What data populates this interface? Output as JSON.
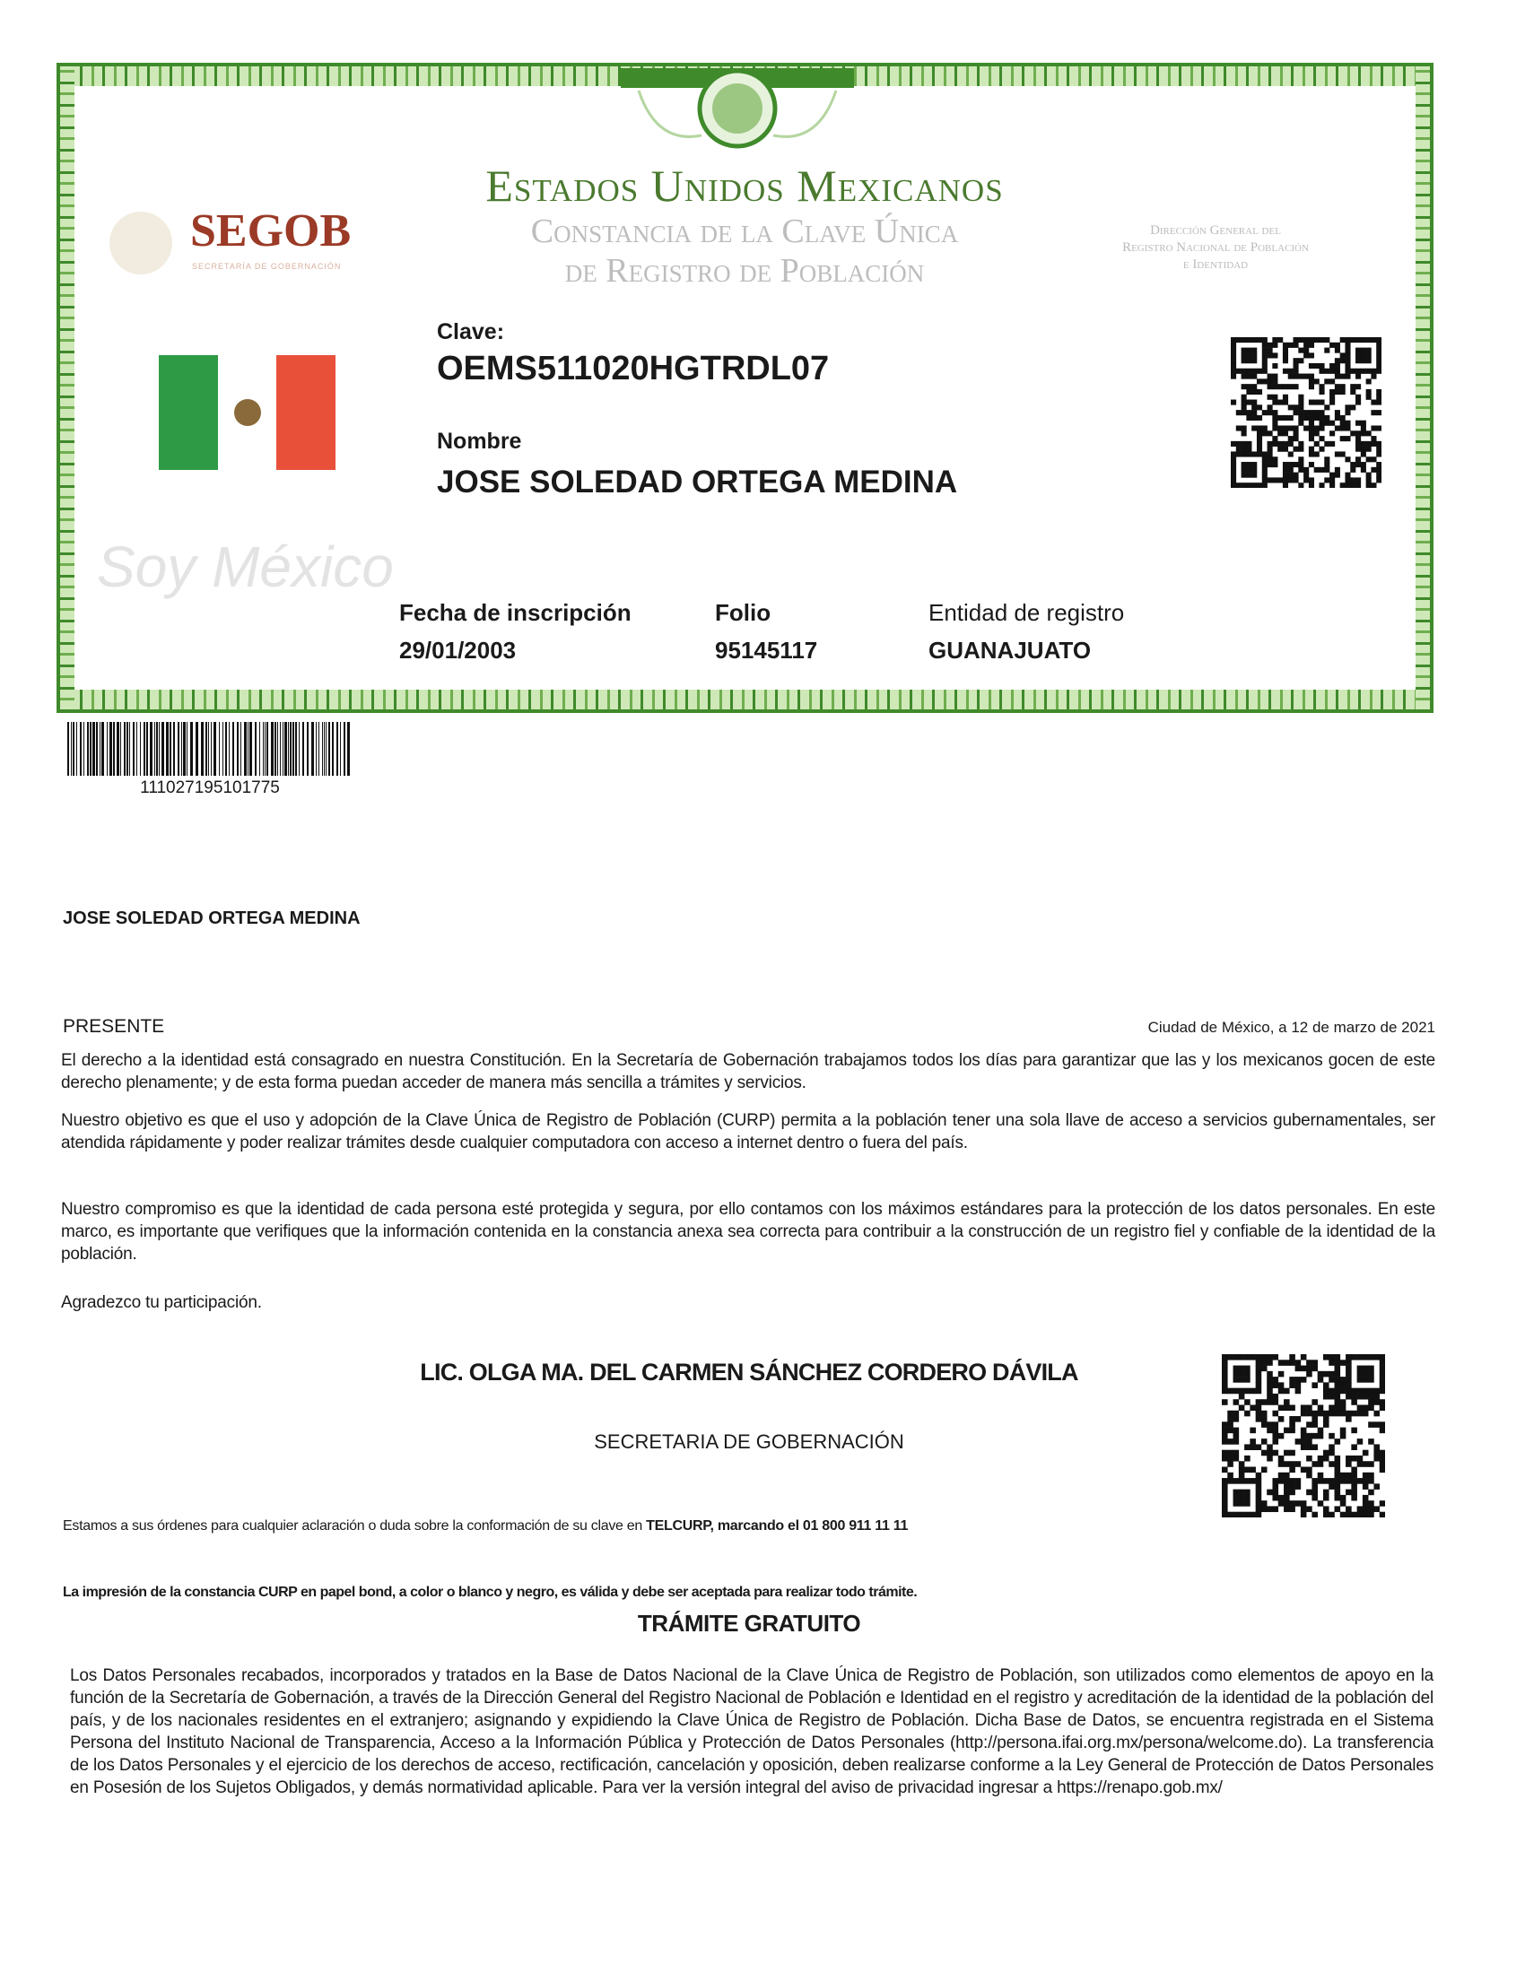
{
  "header": {
    "country": "Estados Unidos Mexicanos",
    "doc_title_line1": "Constancia de la Clave Única",
    "doc_title_line2": "de Registro de Población",
    "agency_logo": "SEGOB",
    "agency_subtitle": "Secretaría de Gobernación",
    "department_line1": "Dirección General del",
    "department_line2": "Registro Nacional de Población",
    "department_line3": "e Identidad",
    "slogan": "Soy México"
  },
  "card": {
    "clave_label": "Clave:",
    "clave_value": "OEMS511020HGTRDL07",
    "nombre_label": "Nombre",
    "nombre_value": "JOSE SOLEDAD ORTEGA MEDINA",
    "fecha_label": "Fecha de inscripción",
    "fecha_value": "29/01/2003",
    "folio_label": "Folio",
    "folio_value": "95145117",
    "entidad_label": "Entidad de registro",
    "entidad_value": "GUANAJUATO"
  },
  "barcode_number": "111027195101775",
  "letter": {
    "recipient": "JOSE SOLEDAD ORTEGA MEDINA",
    "presente": "PRESENTE",
    "place_date": "Ciudad de México, a 12 de marzo de 2021",
    "paragraphs": [
      "El derecho a la identidad está consagrado en nuestra Constitución. En la Secretaría de Gobernación trabajamos todos los días para garantizar que las y los mexicanos gocen de este derecho plenamente; y de esta forma puedan acceder de manera más sencilla a trámites y servicios.",
      "Nuestro objetivo es que el uso y adopción de la Clave Única de Registro de Población (CURP) permita a la población tener una sola llave de acceso a servicios gubernamentales, ser atendida rápidamente y poder realizar trámites desde cualquier computadora con acceso a internet dentro o fuera del país.",
      "Nuestro compromiso es que la identidad de cada persona esté protegida y segura, por ello contamos con los máximos estándares para la protección de los datos personales. En este marco, es importante que verifiques que la información contenida en la constancia anexa sea correcta para contribuir a la construcción de un registro fiel y confiable de la identidad de la población."
    ],
    "closing": "Agradezco tu participación.",
    "signer_name": "LIC. OLGA MA. DEL CARMEN SÁNCHEZ CORDERO DÁVILA",
    "signer_title": "SECRETARIA DE GOBERNACIÓN",
    "contact_text": "Estamos a sus órdenes para cualquier aclaración o duda sobre la conformación de su clave en ",
    "contact_bold": "TELCURP, marcando el 01 800 911 11 11",
    "validity_notice": "La impresión de la constancia CURP en papel bond, a color o blanco y negro, es válida y debe ser aceptada para realizar todo trámite.",
    "free_notice": "TRÁMITE GRATUITO",
    "privacy": "Los Datos Personales recabados, incorporados y tratados en la Base de Datos Nacional de la Clave Única de Registro de Población, son utilizados como elementos de apoyo en la función de la Secretaría de Gobernación, a través de la Dirección General del Registro Nacional de Población e Identidad en el registro y acreditación de la identidad de la población del país, y de los nacionales residentes en el extranjero; asignando y expidiendo la Clave Única de Registro de Población. Dicha Base de Datos, se encuentra registrada en el Sistema Persona del Instituto Nacional de Transparencia, Acceso a la Información Pública y Protección de Datos Personales (http://persona.ifai.org.mx/persona/welcome.do). La transferencia de los Datos Personales y el ejercicio de los derechos de acceso, rectificación, cancelación y oposición, deben realizarse conforme a la Ley General de Protección de Datos Personales en Posesión de los Sujetos Obligados, y demás normatividad aplicable. Para ver la versión integral del aviso de privacidad ingresar a https://renapo.gob.mx/"
  },
  "colors": {
    "border_green": "#3f8a2a",
    "title_green": "#4a7a2e",
    "segob_red": "#9b3a26",
    "flag_green": "#2e9a46",
    "flag_red": "#e8503a"
  },
  "icons": [
    "national-seal-icon",
    "mexico-flag-icon",
    "qr-code-icon",
    "barcode-icon"
  ]
}
